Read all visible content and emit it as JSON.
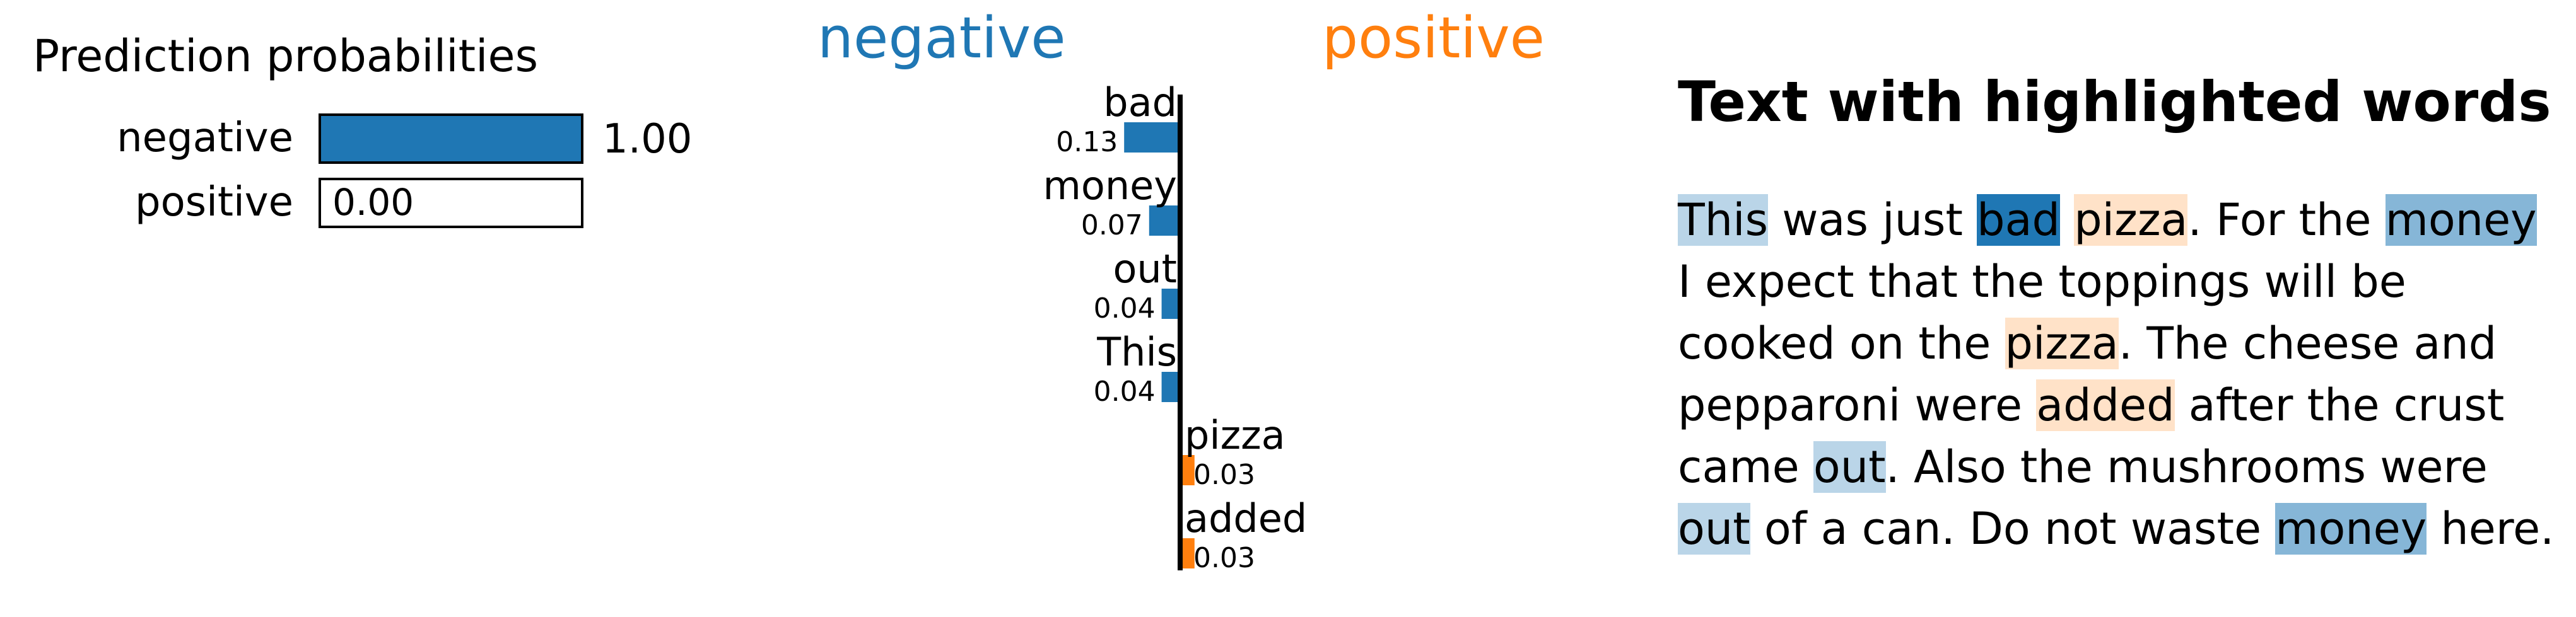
{
  "prediction_panel": {
    "title": "Prediction probabilities",
    "rows": [
      {
        "label": "negative",
        "value": 1.0,
        "value_text": "1.00",
        "color": "#1f77b4"
      },
      {
        "label": "positive",
        "value": 0.0,
        "value_text": "0.00",
        "color": "#ff7f0e"
      }
    ]
  },
  "chart_data": {
    "type": "bar",
    "orientation": "horizontal-diverging",
    "class_labels": {
      "negative": {
        "text": "negative",
        "color": "#1f77b4"
      },
      "positive": {
        "text": "positive",
        "color": "#ff7f0e"
      }
    },
    "features": [
      {
        "name": "bad",
        "weight": 0.13,
        "weight_text": "0.13",
        "class": "negative"
      },
      {
        "name": "money",
        "weight": 0.07,
        "weight_text": "0.07",
        "class": "negative"
      },
      {
        "name": "out",
        "weight": 0.04,
        "weight_text": "0.04",
        "class": "negative"
      },
      {
        "name": "This",
        "weight": 0.04,
        "weight_text": "0.04",
        "class": "positive_false_placeholder"
      },
      {
        "name": "pizza",
        "weight": 0.03,
        "weight_text": "0.03",
        "class": "positive"
      },
      {
        "name": "added",
        "weight": 0.03,
        "weight_text": "0.03",
        "class": "positive"
      }
    ]
  },
  "text_panel": {
    "title": "Text with highlighted words",
    "tokens": [
      {
        "t": "This",
        "hl": "neg",
        "level": 0.31
      },
      {
        "t": " was just "
      },
      {
        "t": "bad",
        "hl": "neg",
        "level": 1.0
      },
      {
        "t": " "
      },
      {
        "t": "pizza",
        "hl": "pos",
        "level": 0.23
      },
      {
        "t": ".  For the "
      },
      {
        "t": "money",
        "hl": "neg",
        "level": 0.54
      },
      {
        "t": " I expect that the toppings will be cooked on the "
      },
      {
        "t": "pizza",
        "hl": "pos",
        "level": 0.23
      },
      {
        "t": ".  The cheese and pepparoni were "
      },
      {
        "t": "added",
        "hl": "pos",
        "level": 0.23
      },
      {
        "t": " after the crust came "
      },
      {
        "t": "out",
        "hl": "neg",
        "level": 0.31
      },
      {
        "t": ".  Also the mushrooms were "
      },
      {
        "t": "out",
        "hl": "neg",
        "level": 0.31
      },
      {
        "t": " of a can.  Do not waste "
      },
      {
        "t": "money",
        "hl": "neg",
        "level": 0.54
      },
      {
        "t": " here."
      }
    ]
  }
}
